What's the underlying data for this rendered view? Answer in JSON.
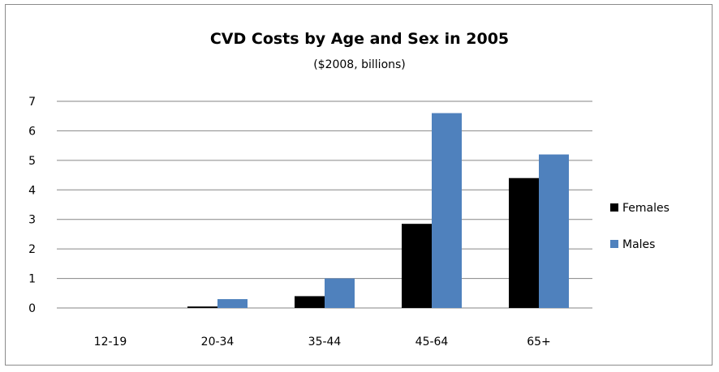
{
  "chart_data": {
    "type": "bar",
    "title": "CVD Costs by Age and Sex in 2005",
    "subtitle": "($2008, billions)",
    "xlabel": "",
    "ylabel": "",
    "categories": [
      "12-19",
      "20-34",
      "35-44",
      "45-64",
      "65+"
    ],
    "series": [
      {
        "name": "Females",
        "color": "#000000",
        "values": [
          0,
          0.05,
          0.4,
          2.85,
          4.4
        ]
      },
      {
        "name": "Males",
        "color": "#4f81bd",
        "values": [
          0,
          0.3,
          1.0,
          6.6,
          5.2
        ]
      }
    ],
    "ylim": [
      0,
      7
    ],
    "yticks": [
      "0",
      "1",
      "2",
      "3",
      "4",
      "5",
      "6",
      "7"
    ],
    "grid": true,
    "legend_position": "right"
  }
}
